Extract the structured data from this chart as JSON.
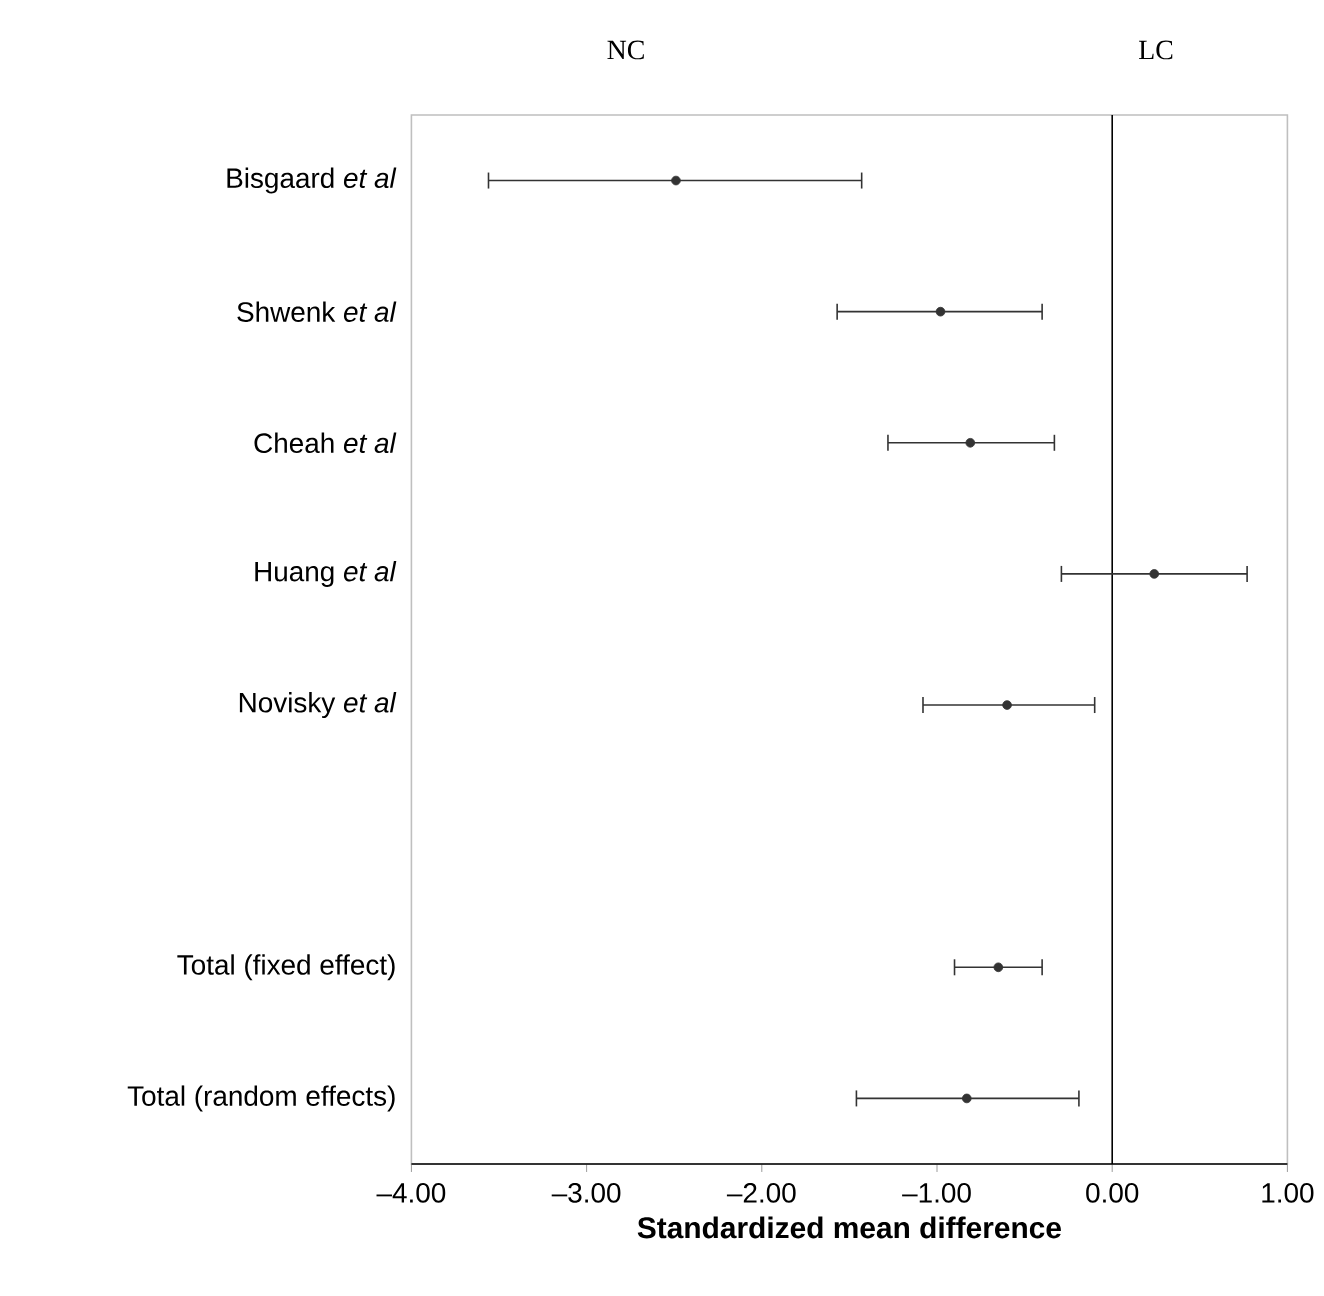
{
  "chart_data": {
    "type": "scatter",
    "orientation": "horizontal",
    "categories": [
      "Bisgaard *et al*",
      "Shwenk *et al*",
      "Cheah *et al*",
      "Huang *et al*",
      "Novisky *et al*",
      null,
      "Total (fixed effect)",
      "Total (random effects)"
    ],
    "values": [
      -2.49,
      -0.98,
      -0.81,
      0.24,
      -0.6,
      null,
      -0.65,
      -0.83
    ],
    "errors": [
      [
        -3.56,
        -1.43
      ],
      [
        -1.57,
        -0.4
      ],
      [
        -1.28,
        -0.33
      ],
      [
        -0.29,
        0.77
      ],
      [
        -1.08,
        -0.1
      ],
      null,
      [
        -0.9,
        -0.4
      ],
      [
        -1.46,
        -0.19
      ]
    ],
    "color": "#333333",
    "marker": "circle",
    "xlim": [
      -4,
      1
    ],
    "xticks": [
      {
        "value": -4,
        "label": "–4.00"
      },
      {
        "value": -3,
        "label": "–3.00"
      },
      {
        "value": -2,
        "label": "–2.00"
      },
      {
        "value": -1,
        "label": "–1.00"
      },
      {
        "value": 0,
        "label": "0.00"
      },
      {
        "value": 1,
        "label": "1.00"
      }
    ],
    "xlabel": "Standardized mean difference",
    "ref_lines": [
      {
        "axis": "x",
        "value": 0,
        "color": "#000000"
      }
    ],
    "annotations": [
      "NC",
      "LC"
    ]
  }
}
